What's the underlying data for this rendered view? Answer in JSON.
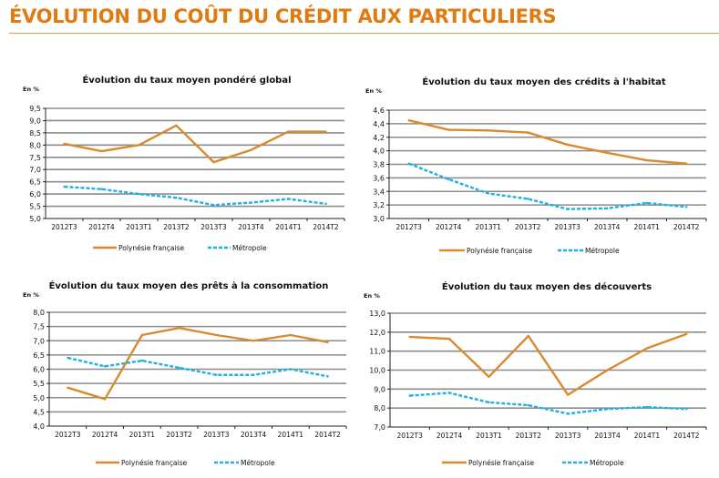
{
  "page_title": "ÉVOLUTION DU COÛT DU CRÉDIT AUX PARTICULIERS",
  "colors": {
    "title": "#e07b12",
    "polynesie": "#d98a2e",
    "metropole": "#1fb1e3",
    "grid": "#8c8c8c"
  },
  "chart_data": [
    {
      "type": "line",
      "title": "Évolution du taux moyen pondéré global",
      "ylabel": "En %",
      "categories": [
        "2012T3",
        "2012T4",
        "2013T1",
        "2013T2",
        "2013T3",
        "2013T4",
        "2014T1",
        "2014T2"
      ],
      "ylim": [
        5.0,
        9.5
      ],
      "yticks": [
        "5,0",
        "5,5",
        "6,0",
        "6,5",
        "7,0",
        "7,5",
        "8,0",
        "8,5",
        "9,0",
        "9,5"
      ],
      "grid": true,
      "legend": "bottom",
      "series": [
        {
          "name": "Polynésie française",
          "values": [
            8.05,
            7.75,
            8.0,
            8.8,
            7.3,
            7.8,
            8.55,
            8.55
          ]
        },
        {
          "name": "Métropole",
          "values": [
            6.3,
            6.2,
            6.0,
            5.85,
            5.55,
            5.65,
            5.8,
            5.6
          ]
        }
      ]
    },
    {
      "type": "line",
      "title": "Évolution du taux moyen des crédits à l'habitat",
      "ylabel": "En %",
      "categories": [
        "2012T3",
        "2012T4",
        "2013T1",
        "2013T2",
        "2013T3",
        "2013T4",
        "2014T1",
        "2014T2"
      ],
      "ylim": [
        3.0,
        4.6
      ],
      "yticks": [
        "3,0",
        "3,2",
        "3,4",
        "3,6",
        "3,8",
        "4,0",
        "4,2",
        "4,4",
        "4,6"
      ],
      "grid": true,
      "legend": "bottom",
      "series": [
        {
          "name": "Polynésie française",
          "values": [
            4.45,
            4.31,
            4.3,
            4.27,
            4.09,
            3.97,
            3.86,
            3.81
          ]
        },
        {
          "name": "Métropole",
          "values": [
            3.81,
            3.58,
            3.37,
            3.29,
            3.14,
            3.15,
            3.23,
            3.17
          ]
        }
      ]
    },
    {
      "type": "line",
      "title": "Évolution du taux moyen des prêts à la consommation",
      "ylabel": "En %",
      "categories": [
        "2012T3",
        "2012T4",
        "2013T1",
        "2013T2",
        "2013T3",
        "2013T4",
        "2014T1",
        "2014T2"
      ],
      "ylim": [
        4.0,
        8.0
      ],
      "yticks": [
        "4,0",
        "4,5",
        "5,0",
        "5,5",
        "6,0",
        "6,5",
        "7,0",
        "7,5",
        "8,0"
      ],
      "grid": true,
      "legend": "bottom",
      "series": [
        {
          "name": "Polynésie française",
          "values": [
            5.35,
            4.95,
            7.2,
            7.45,
            7.2,
            7.0,
            7.2,
            6.95
          ]
        },
        {
          "name": "Métropole",
          "values": [
            6.4,
            6.1,
            6.3,
            6.05,
            5.8,
            5.8,
            6.0,
            5.75
          ]
        }
      ]
    },
    {
      "type": "line",
      "title": "Évolution du taux moyen des découverts",
      "ylabel": "En %",
      "categories": [
        "2012T3",
        "2012T4",
        "2013T1",
        "2013T2",
        "2013T3",
        "2013T4",
        "2014T1",
        "2014T2"
      ],
      "ylim": [
        7.0,
        13.0
      ],
      "yticks": [
        "7,0",
        "8,0",
        "9,0",
        "10,0",
        "11,0",
        "12,0",
        "13,0"
      ],
      "grid": true,
      "legend": "bottom",
      "series": [
        {
          "name": "Polynésie française",
          "values": [
            11.75,
            11.65,
            9.65,
            11.8,
            8.7,
            10.0,
            11.15,
            11.9
          ]
        },
        {
          "name": "Métropole",
          "values": [
            8.65,
            8.8,
            8.3,
            8.15,
            7.7,
            7.95,
            8.05,
            7.95
          ]
        }
      ]
    }
  ]
}
